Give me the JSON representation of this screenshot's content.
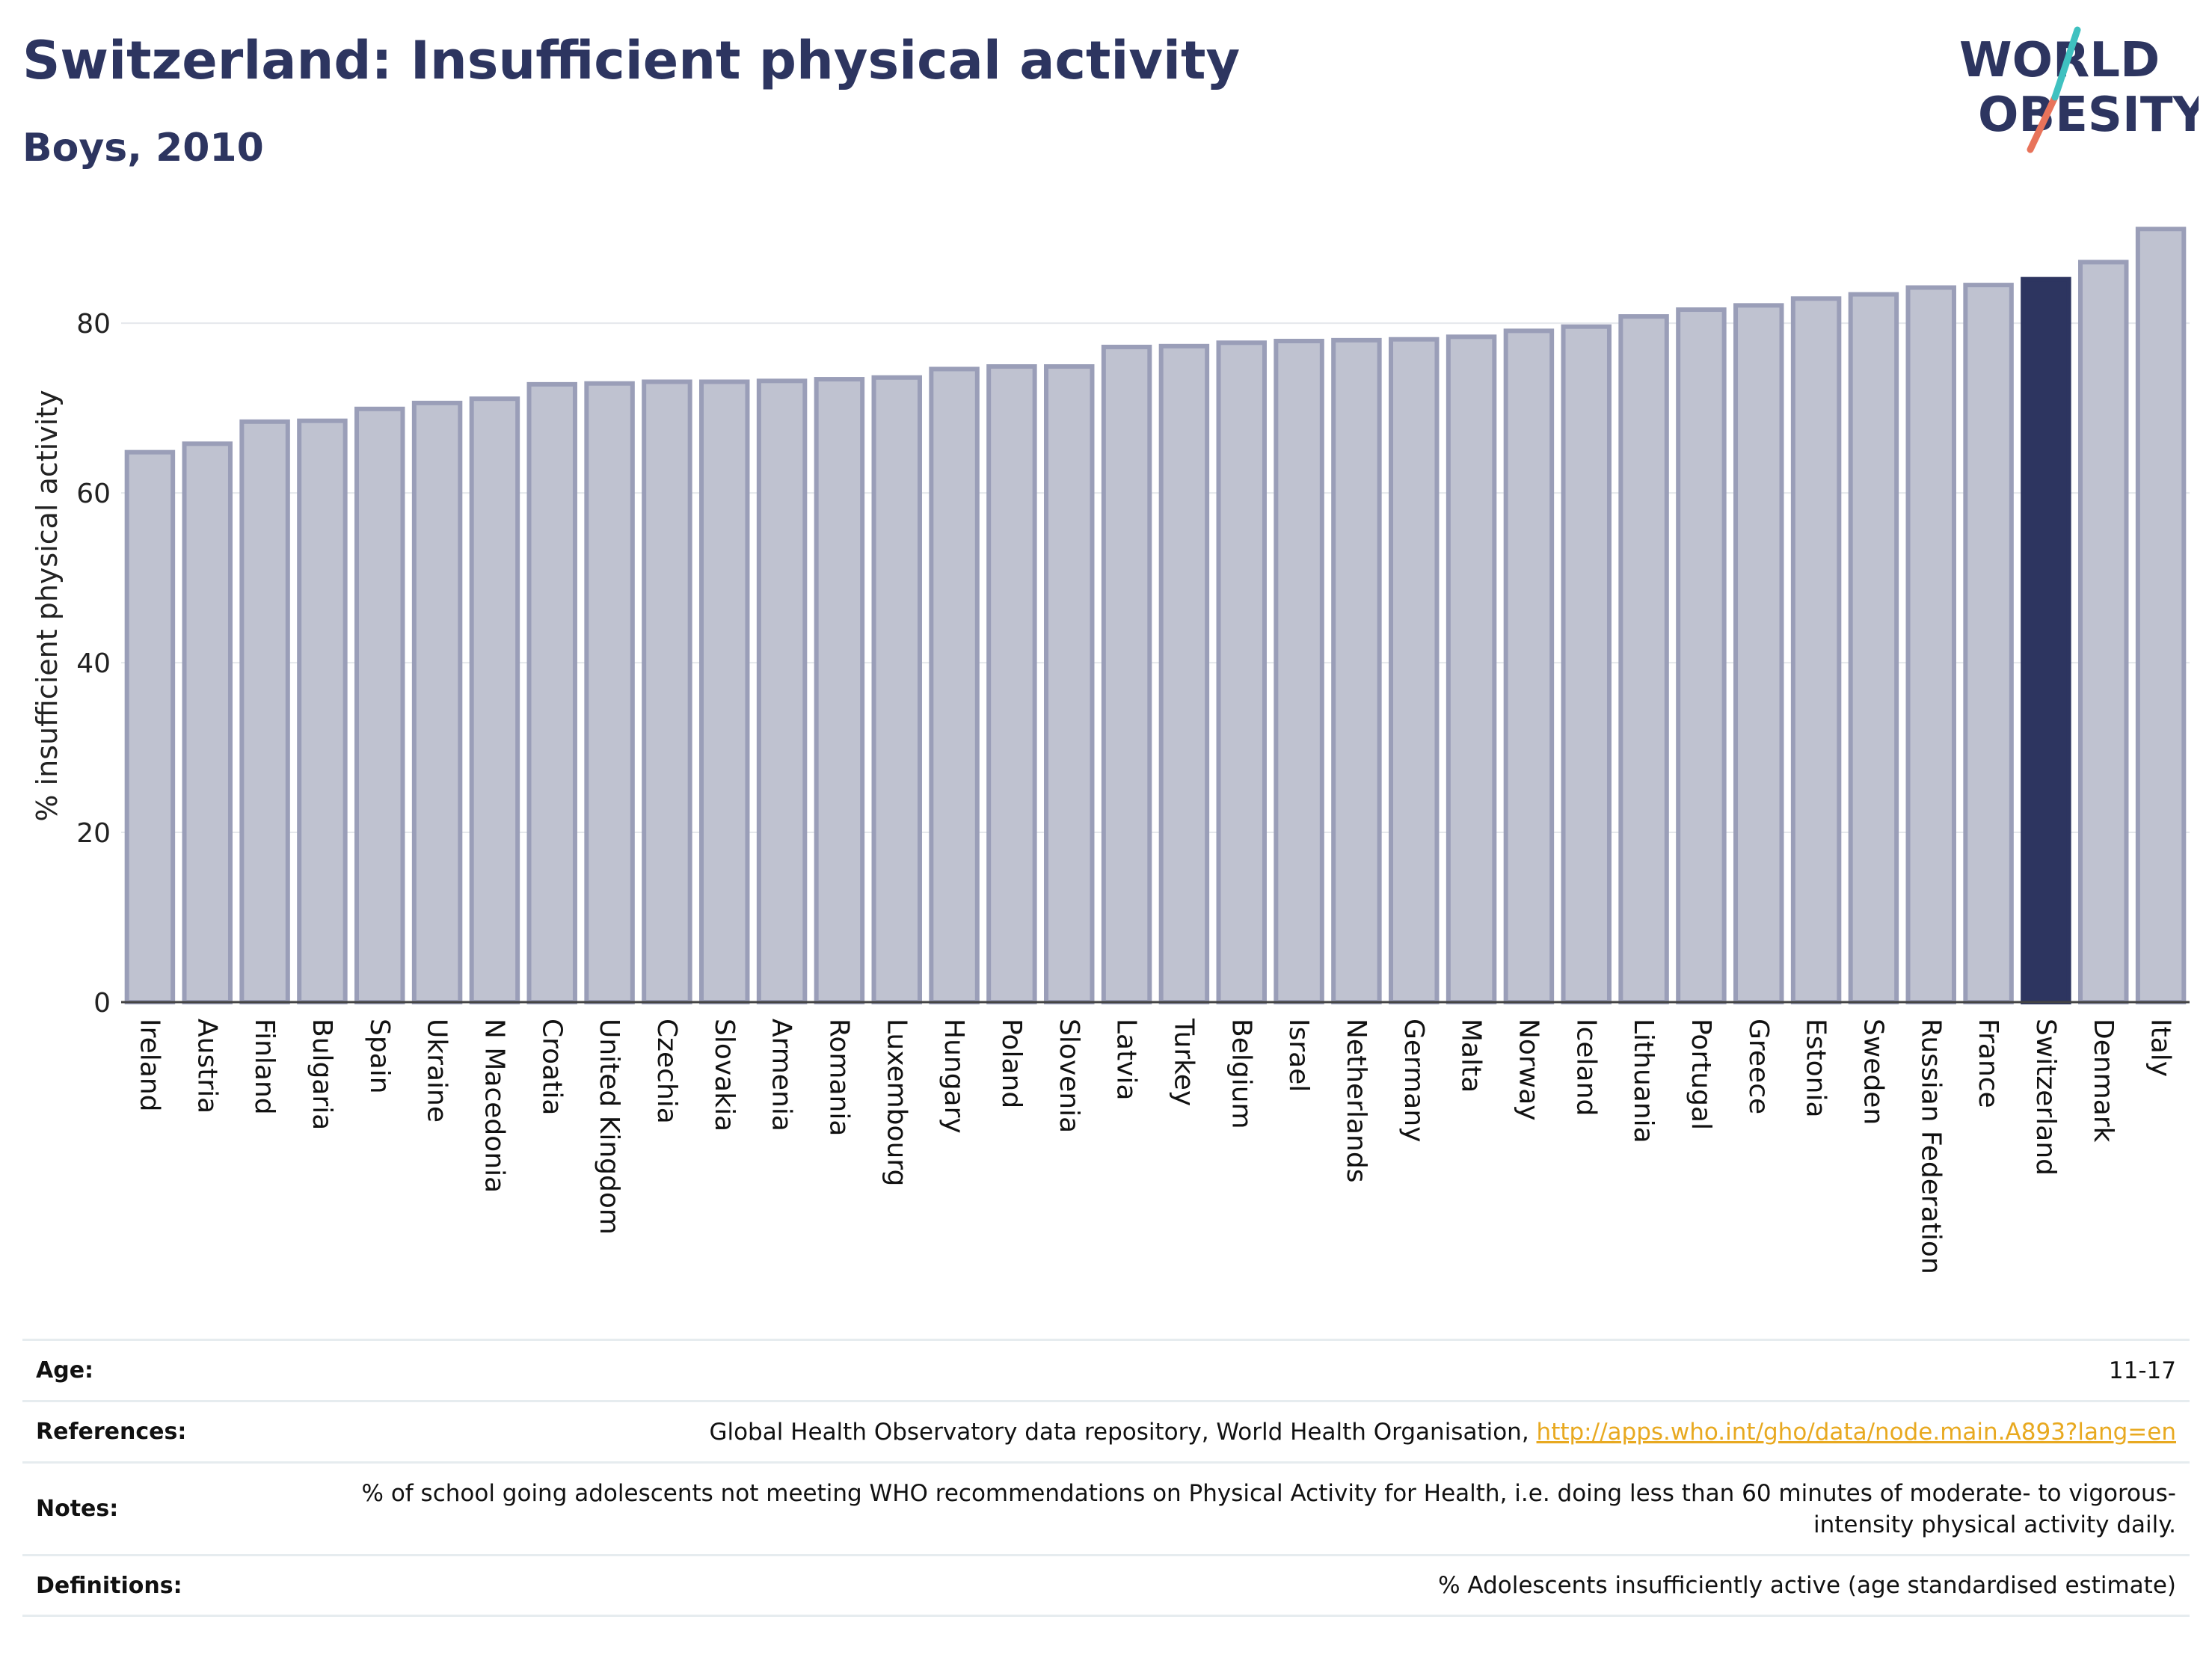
{
  "header": {
    "title": "Switzerland: Insufficient physical activity",
    "subtitle": "Boys, 2010"
  },
  "logo": {
    "line1": "WORLD",
    "line2": "OBESITY",
    "icon": "world-obesity-logo-icon",
    "colors": [
      "#2d3560",
      "#3fc1c0",
      "#e8735a"
    ]
  },
  "chart_data": {
    "type": "bar",
    "ylabel": "% insufficient physical activity",
    "xlabel": "",
    "ylim": [
      0,
      92
    ],
    "yticks": [
      0,
      20,
      40,
      60,
      80
    ],
    "grid": true,
    "highlight": "Switzerland",
    "colors": {
      "bar": "#bfc2d0",
      "bar_border": "#9a9eb8",
      "highlight": "#2d3560",
      "grid": "#e5e8ec",
      "axis": "#444444"
    },
    "categories": [
      "Ireland",
      "Austria",
      "Finland",
      "Bulgaria",
      "Spain",
      "Ukraine",
      "N Macedonia",
      "Croatia",
      "United Kingdom",
      "Czechia",
      "Slovakia",
      "Armenia",
      "Romania",
      "Luxembourg",
      "Hungary",
      "Poland",
      "Slovenia",
      "Latvia",
      "Turkey",
      "Belgium",
      "Israel",
      "Netherlands",
      "Germany",
      "Malta",
      "Norway",
      "Iceland",
      "Lithuania",
      "Portugal",
      "Greece",
      "Estonia",
      "Sweden",
      "Russian Federation",
      "France",
      "Switzerland",
      "Denmark",
      "Italy"
    ],
    "values": [
      64.8,
      65.8,
      68.4,
      68.5,
      69.9,
      70.6,
      71.1,
      72.8,
      72.9,
      73.1,
      73.1,
      73.2,
      73.4,
      73.6,
      74.6,
      74.9,
      74.9,
      77.2,
      77.3,
      77.7,
      77.9,
      78.0,
      78.1,
      78.4,
      79.1,
      79.6,
      80.8,
      81.6,
      82.1,
      82.9,
      83.4,
      84.2,
      84.5,
      85.2,
      87.2,
      91.1
    ]
  },
  "meta": {
    "age_label": "Age:",
    "age_value": "11-17",
    "references_label": "References:",
    "references_text": "Global Health Observatory data repository, World Health Organisation, ",
    "references_link": "http://apps.who.int/gho/data/node.main.A893?lang=en",
    "notes_label": "Notes:",
    "notes_value": "% of school going adolescents not meeting WHO recommendations on Physical Activity for Health, i.e. doing less than 60 minutes of moderate- to vigorous-intensity physical activity daily.",
    "definitions_label": "Definitions:",
    "definitions_value": "% Adolescents insufficiently active (age standardised estimate)"
  }
}
